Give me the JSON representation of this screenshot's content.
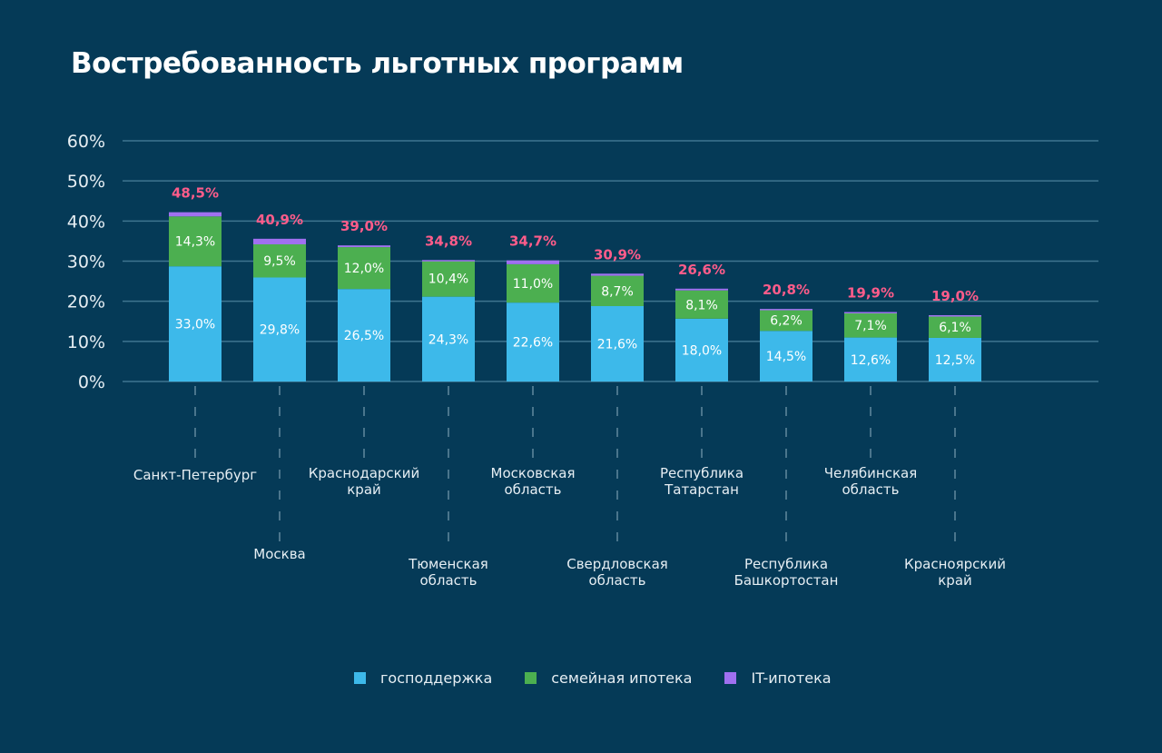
{
  "title": "Востребованность льготных программ",
  "colors": {
    "background": "#053a57",
    "gospodderzhka": "#3db9ea",
    "semeynaya": "#4caf50",
    "it": "#a070f0",
    "total_label": "#ff5c8a",
    "grid": "#3f7590",
    "segment_label": "#ffffff",
    "axis_text": "#e6eef3"
  },
  "chart_data": {
    "type": "bar",
    "stacked": true,
    "title": "Востребованность льготных программ",
    "xlabel": "",
    "ylabel": "",
    "ylim": [
      0,
      60
    ],
    "yticks": [
      "0%",
      "10%",
      "20%",
      "30%",
      "40%",
      "50%",
      "60%"
    ],
    "grid": true,
    "legend_position": "bottom",
    "categories": [
      "Санкт-Петербург",
      "Москва",
      "Краснодарский край",
      "Тюменская область",
      "Московская область",
      "Свердловская область",
      "Республика Татарстан",
      "Республика Башкортостан",
      "Челябинская область",
      "Красноярский край"
    ],
    "category_lines": [
      [
        "Санкт-Петербург"
      ],
      [
        "Москва"
      ],
      [
        "Краснодарский",
        "край"
      ],
      [
        "Тюменская",
        "область"
      ],
      [
        "Московская",
        "область"
      ],
      [
        "Свердловская",
        "область"
      ],
      [
        "Республика",
        "Татарстан"
      ],
      [
        "Республика",
        "Башкортостан"
      ],
      [
        "Челябинская",
        "область"
      ],
      [
        "Красноярский",
        "край"
      ]
    ],
    "series": [
      {
        "name": "господдержка",
        "key": "gospodderzhka",
        "values": [
          33.0,
          29.8,
          26.5,
          24.3,
          22.6,
          21.6,
          18.0,
          14.5,
          12.6,
          12.5
        ],
        "labels": [
          "33,0%",
          "29,8%",
          "26,5%",
          "24,3%",
          "22,6%",
          "21,6%",
          "18,0%",
          "14,5%",
          "12,6%",
          "12,5%"
        ]
      },
      {
        "name": "семейная ипотека",
        "key": "semeynaya",
        "values": [
          14.3,
          9.5,
          12.0,
          10.4,
          11.0,
          8.7,
          8.1,
          6.2,
          7.1,
          6.1
        ],
        "labels": [
          "14,3%",
          "9,5%",
          "12,0%",
          "10,4%",
          "11,0%",
          "8,7%",
          "8,1%",
          "6,2%",
          "7,1%",
          "6,1%"
        ]
      },
      {
        "name": "IT-ипотека",
        "key": "it",
        "values": [
          1.2,
          1.6,
          0.5,
          0.1,
          1.1,
          0.6,
          0.5,
          0.1,
          0.2,
          0.4
        ],
        "labels": []
      }
    ],
    "totals": [
      48.5,
      40.9,
      39.0,
      34.8,
      34.7,
      30.9,
      26.6,
      20.8,
      19.9,
      19.0
    ],
    "total_labels": [
      "48,5%",
      "40,9%",
      "39,0%",
      "34,8%",
      "34,7%",
      "30,9%",
      "26,6%",
      "20,8%",
      "19,9%",
      "19,0%"
    ]
  },
  "legend": [
    {
      "label": "господдержка",
      "color_key": "gospodderzhka"
    },
    {
      "label": "семейная ипотека",
      "color_key": "semeynaya"
    },
    {
      "label": "IT-ипотека",
      "color_key": "it"
    }
  ]
}
